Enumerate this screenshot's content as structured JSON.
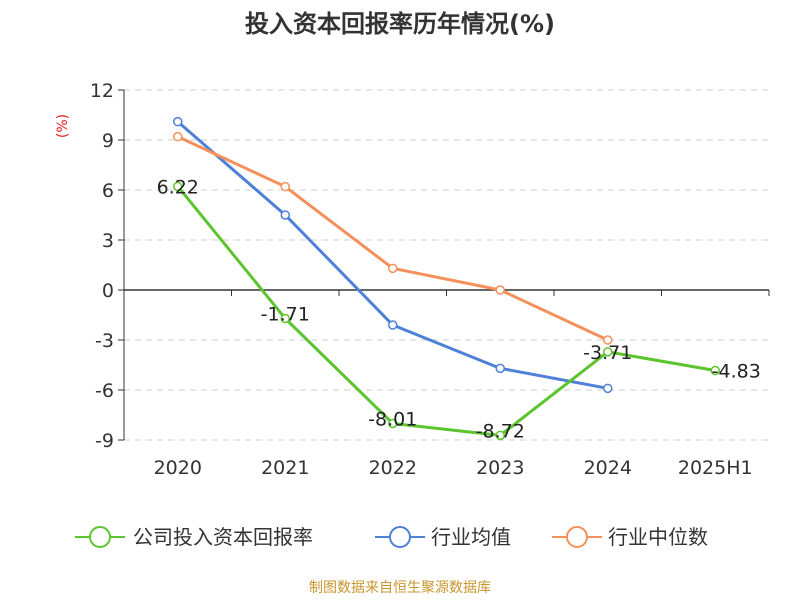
{
  "chart_data": {
    "type": "line",
    "title": "投入资本回报率历年情况(%)",
    "ylabel": "(%)",
    "categories": [
      "2020",
      "2021",
      "2022",
      "2023",
      "2024",
      "2025H1"
    ],
    "ylim": [
      -9,
      12
    ],
    "yticks": [
      12,
      9,
      6,
      3,
      0,
      -3,
      -6,
      -9
    ],
    "grid": true,
    "legend_position": "bottom",
    "series": [
      {
        "name": "公司投入资本回报率",
        "color": "#5cc42e",
        "values": [
          6.22,
          -1.71,
          -8.01,
          -8.72,
          -3.71,
          -4.83
        ],
        "labels": [
          "6.22",
          "-1.71",
          "-8.01",
          "-8.72",
          "-3.71",
          "-4.83"
        ]
      },
      {
        "name": "行业均值",
        "color": "#4f80d8",
        "values": [
          10.1,
          4.5,
          -2.1,
          -4.7,
          -5.9,
          null
        ]
      },
      {
        "name": "行业中位数",
        "color": "#f5905a",
        "values": [
          9.2,
          6.2,
          1.3,
          0.0,
          -3.0,
          null
        ]
      }
    ],
    "source": "制图数据来自恒生聚源数据库"
  }
}
